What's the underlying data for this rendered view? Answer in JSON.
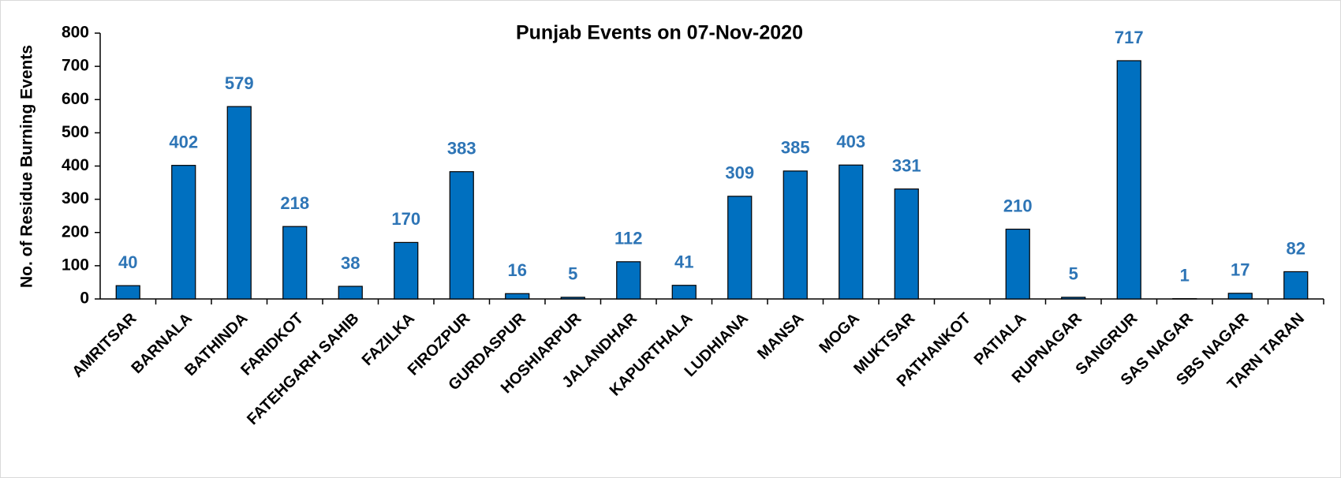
{
  "chart_data": {
    "type": "bar",
    "title": "Punjab Events on 07-Nov-2020",
    "y_label": "No. of Residue Burning Events",
    "categories": [
      "AMRITSAR",
      "BARNALA",
      "BATHINDA",
      "FARIDKOT",
      "FATEHGARH SAHIB",
      "FAZILKA",
      "FIROZPUR",
      "GURDASPUR",
      "HOSHIARPUR",
      "JALANDHAR",
      "KAPURTHALA",
      "LUDHIANA",
      "MANSA",
      "MOGA",
      "MUKTSAR",
      "PATHANKOT",
      "PATIALA",
      "RUPNAGAR",
      "SANGRUR",
      "SAS NAGAR",
      "SBS NAGAR",
      "TARN TARAN"
    ],
    "values": [
      40,
      402,
      579,
      218,
      38,
      170,
      383,
      16,
      5,
      112,
      41,
      309,
      385,
      403,
      331,
      null,
      210,
      5,
      717,
      1,
      17,
      82
    ],
    "color": "#0070c0",
    "label_color": "#2e75b6",
    "ylim": [
      0,
      800
    ],
    "yticks": [
      0,
      100,
      200,
      300,
      400,
      500,
      600,
      700,
      800
    ],
    "grid": false
  }
}
